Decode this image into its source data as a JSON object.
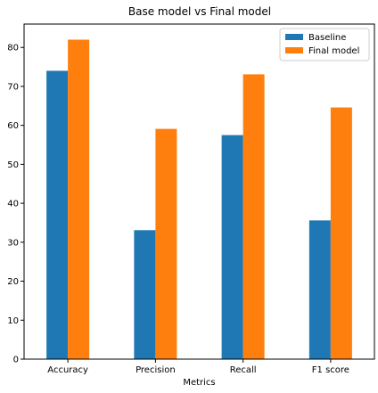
{
  "chart_data": {
    "type": "bar",
    "title": "Base model vs Final model",
    "xlabel": "Metrics",
    "ylabel": "",
    "categories": [
      "Accuracy",
      "Precision",
      "Recall",
      "F1 score"
    ],
    "series": [
      {
        "name": "Baseline",
        "values": [
          74.0,
          33.1,
          57.5,
          35.6
        ],
        "color": "#1f77b4"
      },
      {
        "name": "Final model",
        "values": [
          82.0,
          59.1,
          73.1,
          64.6
        ],
        "color": "#ff7f0e"
      }
    ],
    "ylim": [
      0,
      86
    ],
    "yticks": [
      0,
      10,
      20,
      30,
      40,
      50,
      60,
      70,
      80
    ],
    "grid": false,
    "legend_position": "top-right"
  }
}
